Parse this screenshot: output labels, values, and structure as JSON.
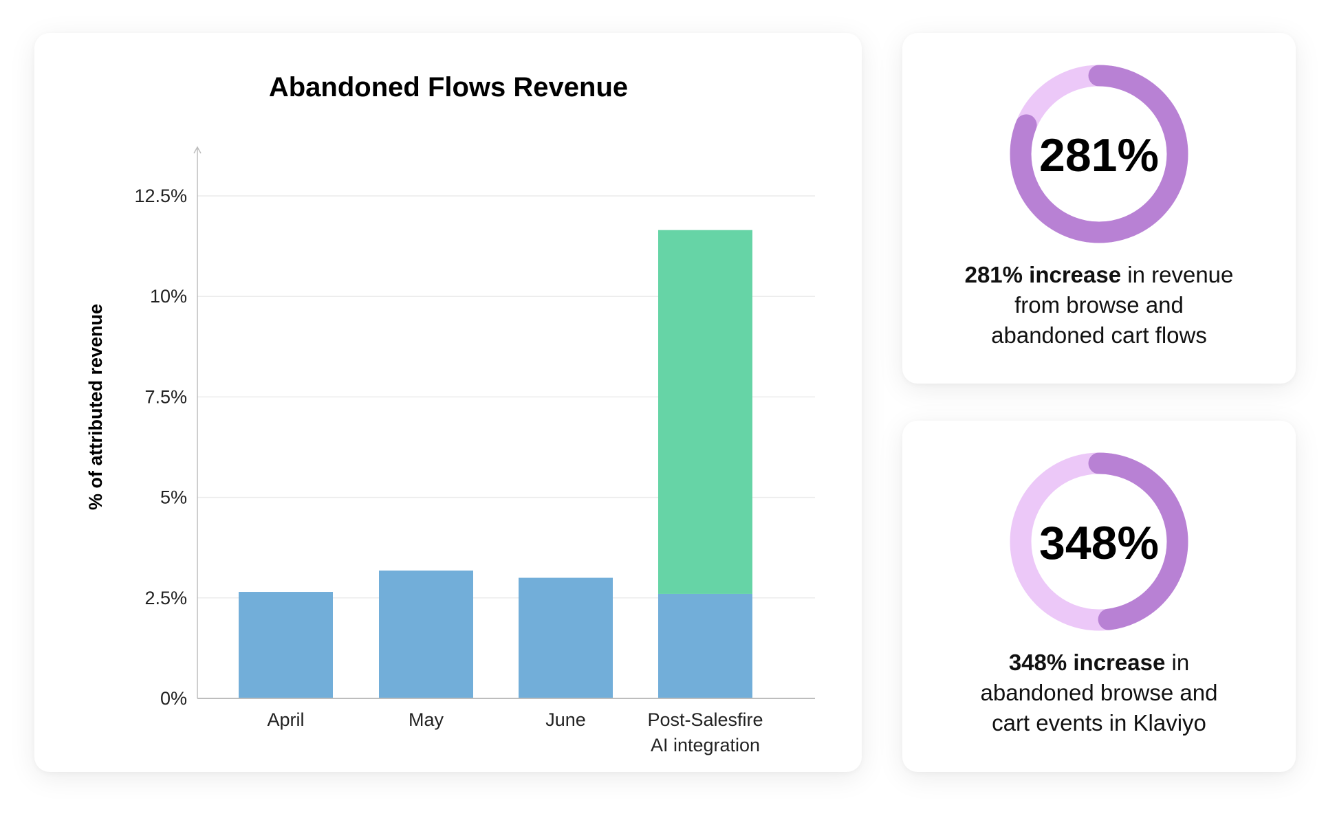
{
  "chart_data": {
    "type": "bar",
    "stacked": true,
    "title": "Abandoned Flows Revenue",
    "xlabel": "",
    "ylabel": "% of attributed revenue",
    "ylim": [
      0,
      13.5
    ],
    "yticks": [
      0,
      2.5,
      5,
      7.5,
      10,
      12.5
    ],
    "ytick_labels": [
      "0%",
      "2.5%",
      "5%",
      "7.5%",
      "10%",
      "12.5%"
    ],
    "categories": [
      [
        "April"
      ],
      [
        "May"
      ],
      [
        "June"
      ],
      [
        "Post-Salesfire",
        "AI integration"
      ]
    ],
    "series": [
      {
        "values": [
          2.65,
          3.18,
          3.0,
          2.6
        ],
        "color": "#72AED9"
      },
      {
        "values": [
          0,
          0,
          0,
          9.05
        ],
        "color": "#66D4A6"
      }
    ],
    "grid": true,
    "legend": "none"
  },
  "stats": [
    {
      "value": "281%",
      "fraction": 0.81,
      "bold": "281% increase",
      "rest": " in revenue",
      "lines": [
        "from browse and",
        "abandoned cart flows"
      ]
    },
    {
      "value": "348%",
      "fraction": 0.48,
      "bold": "348% increase",
      "rest": " in",
      "lines": [
        "abandoned browse and",
        "cart events in Klaviyo"
      ]
    }
  ],
  "colors": {
    "ring_fill": "#B881D4",
    "ring_track": "#ECC8F8",
    "gridline": "#EBEBEB",
    "axis": "#BDBDBD"
  }
}
